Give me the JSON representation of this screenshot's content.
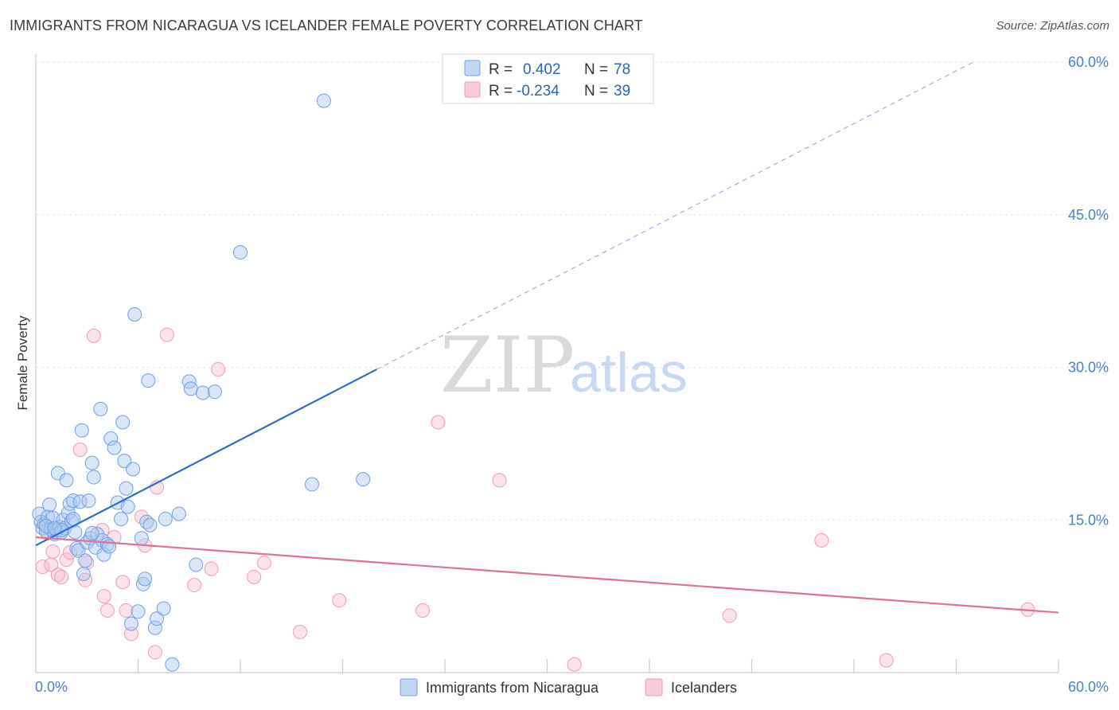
{
  "header": {
    "title": "IMMIGRANTS FROM NICARAGUA VS ICELANDER FEMALE POVERTY CORRELATION CHART",
    "source": "Source: ZipAtlas.com"
  },
  "watermark": {
    "zip": "ZIP",
    "atlas": "atlas"
  },
  "legend": {
    "rows": [
      {
        "r_label": "R =",
        "r_value": "0.402",
        "n_label": "N =",
        "n_value": "78",
        "color": "#6fa0e6"
      },
      {
        "r_label": "R =",
        "r_value": "-0.234",
        "n_label": "N =",
        "n_value": "39",
        "color": "#f09ab7"
      }
    ]
  },
  "bottom_legend": {
    "items": [
      {
        "label": "Immigrants from Nicaragua",
        "color": "#6fa0e6"
      },
      {
        "label": "Icelanders",
        "color": "#f09ab7"
      }
    ]
  },
  "chart_data": {
    "type": "scatter",
    "title": "IMMIGRANTS FROM NICARAGUA VS ICELANDER FEMALE POVERTY CORRELATION CHART",
    "xlabel": "",
    "ylabel": "Female Poverty",
    "xlim": [
      0,
      60
    ],
    "ylim": [
      0,
      60
    ],
    "x_tick_labels": [
      "0.0%",
      "60.0%"
    ],
    "y_ticks": [
      15,
      30,
      45,
      60
    ],
    "y_tick_labels": [
      "15.0%",
      "30.0%",
      "45.0%",
      "60.0%"
    ],
    "grid": true,
    "legend_position": "top-center",
    "series": [
      {
        "name": "Immigrants from Nicaragua",
        "color": "#6fa0e6",
        "line_color": "#2a6fd0",
        "trend": {
          "x0": 0,
          "y0": 12.5,
          "x1": 20,
          "y1": 29.8,
          "x_dash_end": 55,
          "y_dash_end": 60
        },
        "points": [
          [
            0.2,
            15.6
          ],
          [
            0.3,
            14.8
          ],
          [
            0.4,
            14.2
          ],
          [
            0.5,
            14.6
          ],
          [
            0.6,
            13.9
          ],
          [
            0.7,
            15.3
          ],
          [
            0.8,
            16.5
          ],
          [
            0.9,
            14.1
          ],
          [
            1.0,
            15.2
          ],
          [
            1.1,
            13.6
          ],
          [
            1.2,
            14.0
          ],
          [
            1.3,
            19.6
          ],
          [
            1.4,
            14.3
          ],
          [
            1.5,
            13.8
          ],
          [
            1.6,
            15.0
          ],
          [
            1.7,
            14.2
          ],
          [
            1.8,
            18.9
          ],
          [
            1.9,
            15.7
          ],
          [
            2.0,
            16.6
          ],
          [
            2.1,
            14.9
          ],
          [
            2.2,
            16.9
          ],
          [
            2.3,
            13.8
          ],
          [
            2.4,
            12.2
          ],
          [
            2.5,
            12.0
          ],
          [
            2.6,
            16.8
          ],
          [
            2.7,
            23.8
          ],
          [
            2.8,
            9.7
          ],
          [
            2.9,
            11.0
          ],
          [
            3.0,
            12.8
          ],
          [
            3.1,
            16.9
          ],
          [
            3.2,
            13.2
          ],
          [
            3.3,
            20.6
          ],
          [
            3.4,
            19.2
          ],
          [
            3.5,
            12.3
          ],
          [
            3.6,
            13.6
          ],
          [
            3.8,
            25.9
          ],
          [
            3.9,
            13.0
          ],
          [
            4.0,
            11.6
          ],
          [
            4.2,
            12.6
          ],
          [
            4.4,
            23.0
          ],
          [
            4.6,
            22.1
          ],
          [
            4.8,
            16.7
          ],
          [
            5.0,
            15.1
          ],
          [
            5.1,
            24.6
          ],
          [
            5.2,
            20.8
          ],
          [
            5.3,
            18.1
          ],
          [
            5.4,
            16.3
          ],
          [
            5.6,
            4.8
          ],
          [
            5.7,
            20.0
          ],
          [
            5.8,
            35.2
          ],
          [
            6.0,
            6.0
          ],
          [
            6.2,
            13.2
          ],
          [
            6.3,
            8.7
          ],
          [
            6.4,
            9.2
          ],
          [
            6.5,
            14.8
          ],
          [
            6.6,
            28.7
          ],
          [
            6.7,
            14.5
          ],
          [
            7.0,
            4.4
          ],
          [
            7.1,
            5.3
          ],
          [
            7.5,
            6.3
          ],
          [
            7.6,
            15.1
          ],
          [
            8.0,
            0.8
          ],
          [
            8.4,
            15.6
          ],
          [
            9.0,
            28.6
          ],
          [
            9.1,
            27.9
          ],
          [
            9.4,
            10.6
          ],
          [
            9.8,
            27.5
          ],
          [
            10.5,
            27.6
          ],
          [
            12.0,
            41.3
          ],
          [
            16.2,
            18.5
          ],
          [
            16.9,
            56.2
          ],
          [
            19.2,
            19.0
          ],
          [
            1.5,
            14.0
          ],
          [
            2.2,
            15.1
          ],
          [
            3.3,
            13.7
          ],
          [
            4.3,
            12.4
          ],
          [
            0.6,
            14.4
          ],
          [
            1.1,
            14.2
          ]
        ]
      },
      {
        "name": "Icelanders",
        "color": "#f09ab7",
        "line_color": "#e0709a",
        "trend": {
          "x0": 0,
          "y0": 13.3,
          "x1": 60,
          "y1": 5.9
        },
        "points": [
          [
            0.4,
            10.4
          ],
          [
            0.7,
            13.7
          ],
          [
            0.9,
            10.6
          ],
          [
            1.0,
            11.9
          ],
          [
            1.3,
            9.6
          ],
          [
            1.5,
            9.4
          ],
          [
            1.8,
            11.1
          ],
          [
            2.0,
            11.8
          ],
          [
            2.6,
            21.9
          ],
          [
            2.9,
            9.1
          ],
          [
            3.0,
            10.8
          ],
          [
            3.4,
            33.1
          ],
          [
            3.9,
            14.0
          ],
          [
            4.0,
            7.5
          ],
          [
            4.2,
            6.1
          ],
          [
            4.6,
            13.3
          ],
          [
            5.1,
            8.9
          ],
          [
            5.3,
            6.1
          ],
          [
            5.6,
            3.8
          ],
          [
            6.2,
            15.3
          ],
          [
            6.4,
            12.5
          ],
          [
            7.1,
            18.2
          ],
          [
            7.0,
            2.0
          ],
          [
            7.7,
            33.2
          ],
          [
            9.3,
            8.6
          ],
          [
            10.3,
            10.2
          ],
          [
            10.7,
            29.8
          ],
          [
            12.8,
            9.4
          ],
          [
            13.4,
            10.8
          ],
          [
            15.5,
            4.0
          ],
          [
            17.8,
            7.1
          ],
          [
            22.7,
            6.1
          ],
          [
            23.6,
            24.6
          ],
          [
            27.2,
            18.9
          ],
          [
            31.6,
            0.8
          ],
          [
            40.7,
            5.6
          ],
          [
            46.1,
            13.0
          ],
          [
            49.9,
            1.2
          ],
          [
            58.2,
            6.2
          ]
        ]
      }
    ]
  }
}
